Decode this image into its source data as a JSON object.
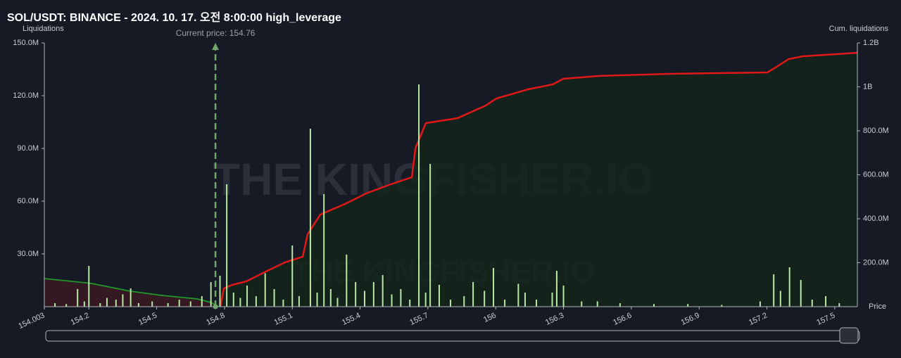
{
  "chart_data": {
    "type": "bar",
    "title": "SOL/USDT: BINANCE - 2024. 10. 17. 오전 8:00:00 high_leverage",
    "ylabel": "Liquidations",
    "y2label": "Cum. liquidations",
    "xlabel": "Price",
    "watermark": "THE KINGFISHER.IO",
    "annotation": {
      "text": "Current price: 154.76",
      "x": 154.76,
      "color": "#6fa86a"
    },
    "x": [
      154.05,
      154.1,
      154.15,
      154.18,
      154.2,
      154.25,
      154.28,
      154.32,
      154.35,
      154.385,
      154.42,
      154.48,
      154.55,
      154.6,
      154.65,
      154.7,
      154.74,
      154.78,
      154.81,
      154.84,
      154.87,
      154.9,
      154.94,
      154.98,
      155.02,
      155.06,
      155.1,
      155.13,
      155.18,
      155.21,
      155.24,
      155.27,
      155.3,
      155.34,
      155.38,
      155.42,
      155.46,
      155.5,
      155.54,
      155.58,
      155.62,
      155.66,
      155.69,
      155.71,
      155.75,
      155.8,
      155.86,
      155.9,
      155.95,
      155.99,
      156.04,
      156.1,
      156.13,
      156.18,
      156.25,
      156.27,
      156.3,
      156.38,
      156.45,
      156.55,
      156.7,
      156.85,
      157.0,
      157.17,
      157.23,
      157.26,
      157.3,
      157.35,
      157.4,
      157.46,
      157.52
    ],
    "values": [
      2000000,
      1500000,
      10000000,
      3000000,
      23200000,
      2000000,
      5000000,
      4000000,
      7000000,
      10400000,
      2000000,
      3000000,
      2000000,
      4000000,
      3000000,
      6000000,
      14000000,
      17600000,
      69600000,
      8000000,
      5000000,
      12000000,
      6000000,
      19000000,
      10000000,
      4000000,
      34800000,
      6000000,
      101200000,
      8000000,
      64000000,
      10000000,
      5000000,
      29600000,
      14000000,
      9000000,
      14000000,
      18000000,
      7000000,
      10000000,
      4000000,
      126400000,
      8000000,
      81200000,
      12400000,
      4000000,
      6000000,
      14000000,
      9000000,
      22000000,
      4000000,
      13000000,
      8000000,
      4000000,
      8000000,
      20400000,
      12000000,
      3000000,
      3000000,
      2000000,
      1500000,
      1500000,
      1000000,
      3000000,
      18400000,
      9000000,
      22400000,
      15200000,
      4000000,
      6000000,
      2000000
    ],
    "color": "#b8e8a4",
    "series": [
      {
        "type": "line",
        "axis": "y2",
        "color": "#e01818",
        "fill": "#13261b",
        "x": [
          154.782,
          154.797,
          154.835,
          154.897,
          154.99,
          155.068,
          155.146,
          155.168,
          155.224,
          155.333,
          155.427,
          155.536,
          155.629,
          155.645,
          155.691,
          155.831,
          155.956,
          156.003,
          156.143,
          156.252,
          156.299,
          156.455,
          156.766,
          157.202,
          157.233,
          157.296,
          157.358,
          157.601
        ],
        "values": [
          0,
          83200000,
          99200000,
          115200000,
          163200000,
          201600000,
          227200000,
          329600000,
          419200000,
          467200000,
          515200000,
          556800000,
          588800000,
          721600000,
          835200000,
          857600000,
          915200000,
          947200000,
          988800000,
          1011200000,
          1036800000,
          1049600000,
          1059200000,
          1065600000,
          1084800000,
          1126400000,
          1139200000,
          1155200000
        ]
      },
      {
        "type": "line",
        "axis": "y2",
        "color": "#1f9a2a",
        "fill": "#3a1a22",
        "x": [
          154.003,
          154.212,
          154.383,
          154.523,
          154.679,
          154.741,
          154.772
        ],
        "values": [
          128000000,
          105600000,
          70400000,
          51200000,
          35200000,
          19200000,
          0
        ]
      }
    ],
    "xlim": [
      154.003,
      157.6
    ],
    "xticks": [
      154.003,
      154.2,
      154.5,
      154.8,
      155.1,
      155.4,
      155.7,
      156,
      156.3,
      156.6,
      156.9,
      157.2,
      157.5
    ],
    "ylim": [
      0,
      150000000
    ],
    "yticks": [
      {
        "value": 30000000,
        "label": "30.0M"
      },
      {
        "value": 60000000,
        "label": "60.0M"
      },
      {
        "value": 90000000,
        "label": "90.0M"
      },
      {
        "value": 120000000,
        "label": "120.0M"
      },
      {
        "value": 150000000,
        "label": "150.0M"
      }
    ],
    "y2lim": [
      0,
      1200000000
    ],
    "y2ticks": [
      {
        "value": 200000000,
        "label": "200.0M"
      },
      {
        "value": 400000000,
        "label": "400.0M"
      },
      {
        "value": 600000000,
        "label": "600.0M"
      },
      {
        "value": 800000000,
        "label": "800.0M"
      },
      {
        "value": 1000000000,
        "label": "1B"
      },
      {
        "value": 1200000000,
        "label": "1.2B"
      }
    ]
  }
}
